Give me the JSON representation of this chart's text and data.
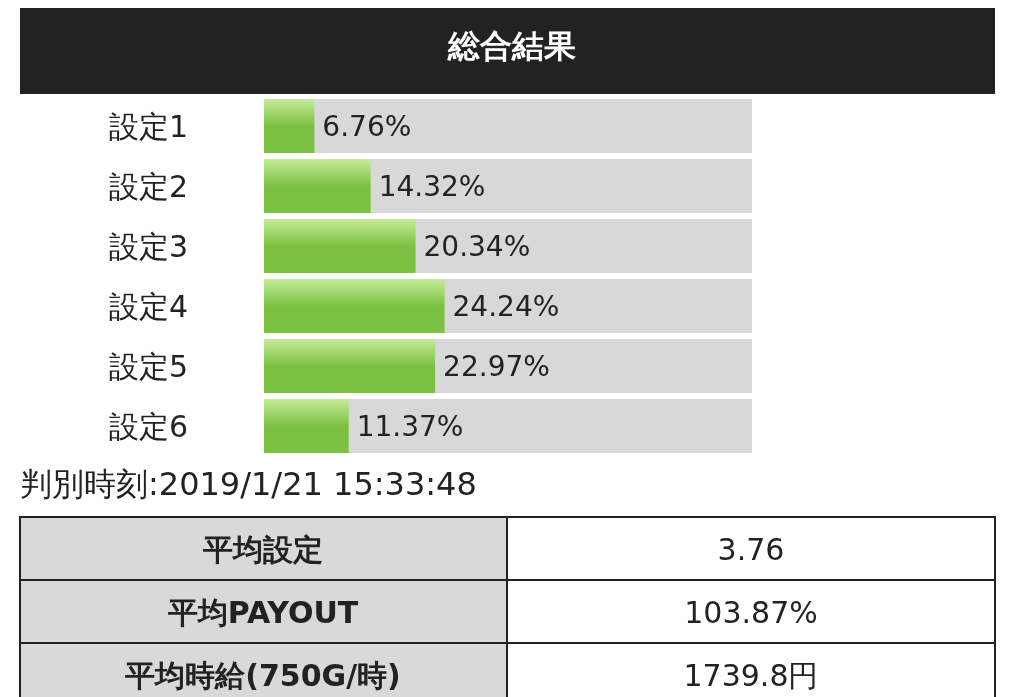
{
  "chart_data": {
    "type": "bar",
    "orientation": "horizontal",
    "title": "総合結果",
    "categories": [
      "設定1",
      "設定2",
      "設定3",
      "設定4",
      "設定5",
      "設定6"
    ],
    "values": [
      6.76,
      14.32,
      20.34,
      24.24,
      22.97,
      11.37
    ],
    "value_labels": [
      "6.76%",
      "14.32%",
      "20.34%",
      "24.24%",
      "22.97%",
      "11.37%"
    ],
    "color": "#7cc142",
    "annotations": [
      "判別時刻:2019/1/21 15:33:48",
      "平均設定",
      "3.76",
      "平均PAYOUT",
      "103.87%",
      "平均時給(750G/時)",
      "1739.8円"
    ]
  }
}
